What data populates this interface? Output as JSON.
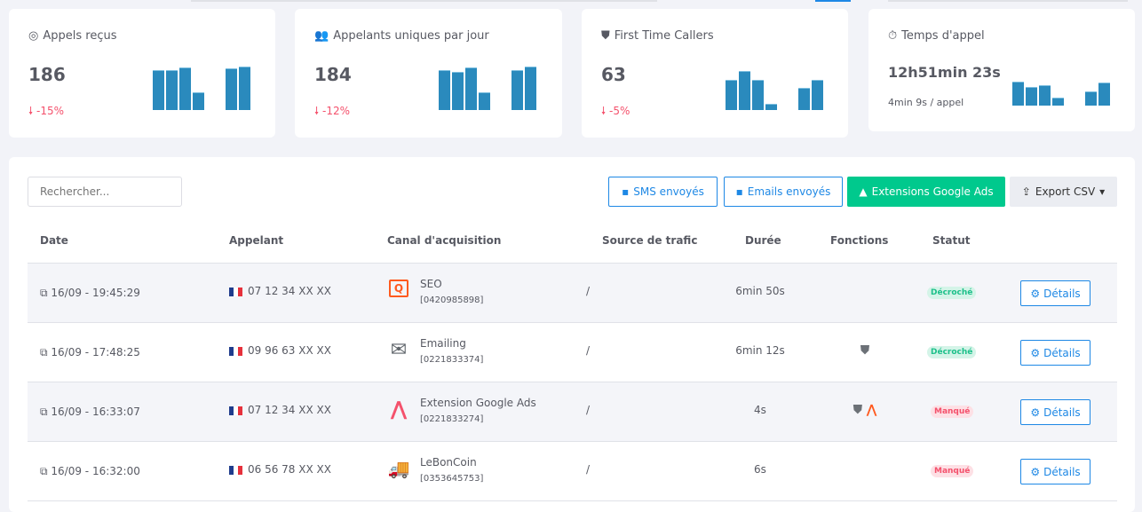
{
  "cards": [
    {
      "title": "Appels reçus",
      "value": "186",
      "trend": "-15%",
      "spark": [
        45,
        45,
        48,
        20,
        0,
        47,
        49
      ]
    },
    {
      "title": "Appelants uniques par jour",
      "value": "184",
      "trend": "-12%",
      "spark": [
        45,
        43,
        48,
        20,
        0,
        45,
        49
      ]
    },
    {
      "title": "First Time Callers",
      "value": "63",
      "trend": "-5%",
      "spark": [
        34,
        44,
        34,
        7,
        0,
        25,
        34
      ]
    },
    {
      "title": "Temps d'appel",
      "value": "12h51min 23s",
      "sub": "4min 9s / appel",
      "spark": [
        27,
        21,
        23,
        9,
        0,
        16,
        26
      ]
    }
  ],
  "toolbar": {
    "search_placeholder": "Rechercher...",
    "sms": "SMS envoyés",
    "emails": "Emails envoyés",
    "google": "Extensions Google Ads",
    "export": "Export CSV"
  },
  "columns": [
    "Date",
    "Appelant",
    "Canal d'acquisition",
    "Source de trafic",
    "Durée",
    "Fonctions",
    "Statut"
  ],
  "rows": [
    {
      "date": "16/09 - 19:45:29",
      "caller": "07 12 34 XX XX",
      "channel": "SEO",
      "number": "[0420985898]",
      "source": "/",
      "duration": "6min 50s",
      "status": "Décroché",
      "details": "Détails"
    },
    {
      "date": "16/09 - 17:48:25",
      "caller": "09 96 63 XX XX",
      "channel": "Emailing",
      "number": "[0221833374]",
      "source": "/",
      "duration": "6min 12s",
      "status": "Décroché",
      "details": "Détails"
    },
    {
      "date": "16/09 - 16:33:07",
      "caller": "07 12 34 XX XX",
      "channel": "Extension Google Ads",
      "number": "[0221833274]",
      "source": "/",
      "duration": "4s",
      "status": "Manqué",
      "details": "Détails"
    },
    {
      "date": "16/09 - 16:32:00",
      "caller": "06 56 78 XX XX",
      "channel": "LeBonCoin",
      "number": "[0353645753]",
      "source": "/",
      "duration": "6s",
      "status": "Manqué",
      "details": "Détails"
    }
  ],
  "colors": {
    "accent": "#1e88e5",
    "green": "#00c98d",
    "bar": "#2a8abd",
    "red": "#f4516c",
    "orange": "#ff5a1f"
  }
}
